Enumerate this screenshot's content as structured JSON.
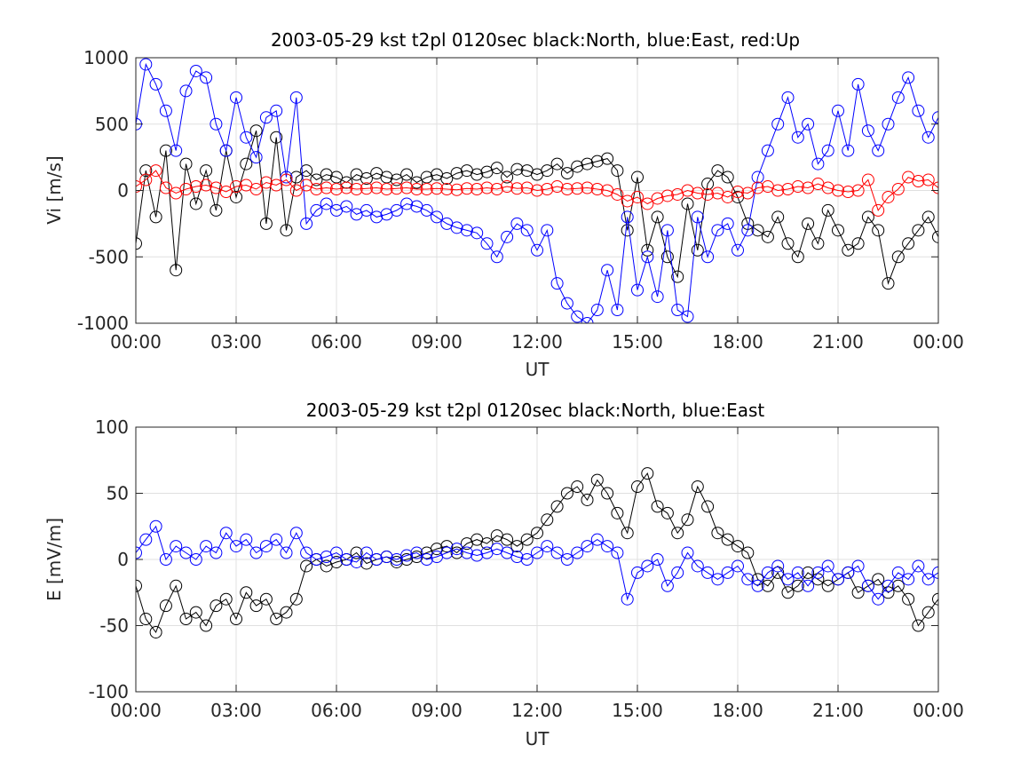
{
  "chart_data": [
    {
      "type": "line",
      "title": "2003-05-29 kst t2pl 0120sec black:North, blue:East, red:Up",
      "xlabel": "UT",
      "ylabel": "Vi [m/s]",
      "xlim": [
        0,
        24
      ],
      "ylim": [
        -1000,
        1000
      ],
      "x_tick_labels": [
        "00:00",
        "03:00",
        "06:00",
        "09:00",
        "12:00",
        "15:00",
        "18:00",
        "21:00",
        "00:00"
      ],
      "y_tick_labels": [
        "1000",
        "500",
        "0",
        "-500",
        "-1000"
      ],
      "grid": true,
      "marker": "open-circle",
      "series": [
        {
          "name": "North",
          "color": "#000000",
          "x": [
            0.0,
            0.3,
            0.6,
            0.9,
            1.2,
            1.5,
            1.8,
            2.1,
            2.4,
            2.7,
            3.0,
            3.3,
            3.6,
            3.9,
            4.2,
            4.5,
            4.8,
            5.1,
            5.4,
            5.7,
            6.0,
            6.3,
            6.6,
            6.9,
            7.2,
            7.5,
            7.8,
            8.1,
            8.4,
            8.7,
            9.0,
            9.3,
            9.6,
            9.9,
            10.2,
            10.5,
            10.8,
            11.1,
            11.4,
            11.7,
            12.0,
            12.3,
            12.6,
            12.9,
            13.2,
            13.5,
            13.8,
            14.1,
            14.4,
            14.7,
            15.0,
            15.3,
            15.6,
            15.9,
            16.2,
            16.5,
            16.8,
            17.1,
            17.4,
            17.7,
            18.0,
            18.3,
            18.6,
            18.9,
            19.2,
            19.5,
            19.8,
            20.1,
            20.4,
            20.7,
            21.0,
            21.3,
            21.6,
            21.9,
            22.2,
            22.5,
            22.8,
            23.1,
            23.4,
            23.7,
            24.0
          ],
          "y": [
            -400,
            150,
            -200,
            300,
            -600,
            200,
            -100,
            150,
            -150,
            300,
            -50,
            200,
            450,
            -250,
            400,
            -300,
            100,
            150,
            80,
            120,
            100,
            60,
            120,
            90,
            130,
            100,
            80,
            120,
            60,
            100,
            120,
            90,
            130,
            150,
            120,
            140,
            170,
            100,
            160,
            150,
            120,
            150,
            200,
            130,
            180,
            200,
            220,
            240,
            150,
            -300,
            100,
            -450,
            -200,
            -500,
            -650,
            -100,
            -450,
            50,
            150,
            100,
            -50,
            -250,
            -300,
            -350,
            -200,
            -400,
            -500,
            -250,
            -400,
            -150,
            -300,
            -450,
            -400,
            -200,
            -300,
            -700,
            -500,
            -400,
            -300,
            -200,
            -350
          ]
        },
        {
          "name": "East",
          "color": "#0000ff",
          "x": [
            0.0,
            0.3,
            0.6,
            0.9,
            1.2,
            1.5,
            1.8,
            2.1,
            2.4,
            2.7,
            3.0,
            3.3,
            3.6,
            3.9,
            4.2,
            4.5,
            4.8,
            5.1,
            5.4,
            5.7,
            6.0,
            6.3,
            6.6,
            6.9,
            7.2,
            7.5,
            7.8,
            8.1,
            8.4,
            8.7,
            9.0,
            9.3,
            9.6,
            9.9,
            10.2,
            10.5,
            10.8,
            11.1,
            11.4,
            11.7,
            12.0,
            12.3,
            12.6,
            12.9,
            13.2,
            13.5,
            13.8,
            14.1,
            14.4,
            14.7,
            15.0,
            15.3,
            15.6,
            15.9,
            16.2,
            16.5,
            16.8,
            17.1,
            17.4,
            17.7,
            18.0,
            18.3,
            18.6,
            18.9,
            19.2,
            19.5,
            19.8,
            20.1,
            20.4,
            20.7,
            21.0,
            21.3,
            21.6,
            21.9,
            22.2,
            22.5,
            22.8,
            23.1,
            23.4,
            23.7,
            24.0
          ],
          "y": [
            500,
            950,
            800,
            600,
            300,
            750,
            900,
            850,
            500,
            300,
            700,
            400,
            250,
            550,
            600,
            100,
            700,
            -250,
            -150,
            -100,
            -150,
            -120,
            -180,
            -150,
            -200,
            -180,
            -150,
            -100,
            -120,
            -150,
            -200,
            -250,
            -280,
            -300,
            -320,
            -400,
            -500,
            -350,
            -250,
            -300,
            -450,
            -300,
            -700,
            -850,
            -950,
            -1000,
            -900,
            -600,
            -900,
            -200,
            -750,
            -500,
            -800,
            -300,
            -900,
            -950,
            -200,
            -500,
            -300,
            -250,
            -450,
            -300,
            100,
            300,
            500,
            700,
            400,
            500,
            200,
            300,
            600,
            300,
            800,
            450,
            300,
            500,
            700,
            850,
            600,
            400,
            550
          ]
        },
        {
          "name": "Up",
          "color": "#ff0000",
          "x": [
            0.0,
            0.3,
            0.6,
            0.9,
            1.2,
            1.5,
            1.8,
            2.1,
            2.4,
            2.7,
            3.0,
            3.3,
            3.6,
            3.9,
            4.2,
            4.5,
            4.8,
            5.1,
            5.4,
            5.7,
            6.0,
            6.3,
            6.6,
            6.9,
            7.2,
            7.5,
            7.8,
            8.1,
            8.4,
            8.7,
            9.0,
            9.3,
            9.6,
            9.9,
            10.2,
            10.5,
            10.8,
            11.1,
            11.4,
            11.7,
            12.0,
            12.3,
            12.6,
            12.9,
            13.2,
            13.5,
            13.8,
            14.1,
            14.4,
            14.7,
            15.0,
            15.3,
            15.6,
            15.9,
            16.2,
            16.5,
            16.8,
            17.1,
            17.4,
            17.7,
            18.0,
            18.3,
            18.6,
            18.9,
            19.2,
            19.5,
            19.8,
            20.1,
            20.4,
            20.7,
            21.0,
            21.3,
            21.6,
            21.9,
            22.2,
            22.5,
            22.8,
            23.1,
            23.4,
            23.7,
            24.0
          ],
          "y": [
            30,
            80,
            150,
            20,
            -20,
            10,
            30,
            40,
            20,
            -10,
            30,
            40,
            10,
            60,
            40,
            80,
            0,
            40,
            10,
            20,
            10,
            20,
            10,
            15,
            20,
            10,
            15,
            20,
            10,
            10,
            15,
            10,
            5,
            15,
            10,
            20,
            10,
            30,
            15,
            20,
            0,
            10,
            30,
            10,
            15,
            20,
            10,
            0,
            -30,
            -80,
            -50,
            -100,
            -60,
            -40,
            -30,
            0,
            -20,
            -30,
            -20,
            -50,
            -10,
            -20,
            20,
            30,
            0,
            10,
            30,
            20,
            50,
            20,
            0,
            -10,
            0,
            80,
            -150,
            -50,
            10,
            100,
            70,
            80,
            20
          ]
        }
      ]
    },
    {
      "type": "line",
      "title": "2003-05-29 kst t2pl 0120sec black:North, blue:East",
      "xlabel": "UT",
      "ylabel": "E [mV/m]",
      "xlim": [
        0,
        24
      ],
      "ylim": [
        -100,
        100
      ],
      "x_tick_labels": [
        "00:00",
        "03:00",
        "06:00",
        "09:00",
        "12:00",
        "15:00",
        "18:00",
        "21:00",
        "00:00"
      ],
      "y_tick_labels": [
        "100",
        "50",
        "0",
        "-50",
        "-100"
      ],
      "grid": true,
      "marker": "open-circle",
      "series": [
        {
          "name": "North",
          "color": "#000000",
          "x": [
            0.0,
            0.3,
            0.6,
            0.9,
            1.2,
            1.5,
            1.8,
            2.1,
            2.4,
            2.7,
            3.0,
            3.3,
            3.6,
            3.9,
            4.2,
            4.5,
            4.8,
            5.1,
            5.4,
            5.7,
            6.0,
            6.3,
            6.6,
            6.9,
            7.2,
            7.5,
            7.8,
            8.1,
            8.4,
            8.7,
            9.0,
            9.3,
            9.6,
            9.9,
            10.2,
            10.5,
            10.8,
            11.1,
            11.4,
            11.7,
            12.0,
            12.3,
            12.6,
            12.9,
            13.2,
            13.5,
            13.8,
            14.1,
            14.4,
            14.7,
            15.0,
            15.3,
            15.6,
            15.9,
            16.2,
            16.5,
            16.8,
            17.1,
            17.4,
            17.7,
            18.0,
            18.3,
            18.6,
            18.9,
            19.2,
            19.5,
            19.8,
            20.1,
            20.4,
            20.7,
            21.0,
            21.3,
            21.6,
            21.9,
            22.2,
            22.5,
            22.8,
            23.1,
            23.4,
            23.7,
            24.0
          ],
          "y": [
            -20,
            -45,
            -55,
            -35,
            -20,
            -45,
            -40,
            -50,
            -35,
            -30,
            -45,
            -25,
            -35,
            -30,
            -45,
            -40,
            -30,
            -5,
            0,
            -5,
            -2,
            0,
            5,
            -3,
            0,
            2,
            -2,
            0,
            2,
            5,
            8,
            10,
            5,
            12,
            15,
            12,
            18,
            15,
            10,
            15,
            20,
            30,
            40,
            50,
            55,
            45,
            60,
            50,
            35,
            20,
            55,
            65,
            40,
            35,
            20,
            30,
            55,
            40,
            20,
            15,
            10,
            5,
            -15,
            -20,
            -10,
            -25,
            -20,
            -10,
            -15,
            -20,
            -15,
            -10,
            -25,
            -20,
            -15,
            -25,
            -20,
            -30,
            -50,
            -40,
            -30
          ]
        },
        {
          "name": "East",
          "color": "#0000ff",
          "x": [
            0.0,
            0.3,
            0.6,
            0.9,
            1.2,
            1.5,
            1.8,
            2.1,
            2.4,
            2.7,
            3.0,
            3.3,
            3.6,
            3.9,
            4.2,
            4.5,
            4.8,
            5.1,
            5.4,
            5.7,
            6.0,
            6.3,
            6.6,
            6.9,
            7.2,
            7.5,
            7.8,
            8.1,
            8.4,
            8.7,
            9.0,
            9.3,
            9.6,
            9.9,
            10.2,
            10.5,
            10.8,
            11.1,
            11.4,
            11.7,
            12.0,
            12.3,
            12.6,
            12.9,
            13.2,
            13.5,
            13.8,
            14.1,
            14.4,
            14.7,
            15.0,
            15.3,
            15.6,
            15.9,
            16.2,
            16.5,
            16.8,
            17.1,
            17.4,
            17.7,
            18.0,
            18.3,
            18.6,
            18.9,
            19.2,
            19.5,
            19.8,
            20.1,
            20.4,
            20.7,
            21.0,
            21.3,
            21.6,
            21.9,
            22.2,
            22.5,
            22.8,
            23.1,
            23.4,
            23.7,
            24.0
          ],
          "y": [
            5,
            15,
            25,
            0,
            10,
            5,
            0,
            10,
            5,
            20,
            10,
            15,
            5,
            10,
            15,
            5,
            20,
            5,
            0,
            2,
            5,
            0,
            -2,
            5,
            0,
            2,
            0,
            3,
            5,
            0,
            2,
            5,
            8,
            5,
            3,
            5,
            8,
            5,
            2,
            0,
            5,
            10,
            5,
            0,
            5,
            10,
            15,
            10,
            5,
            -30,
            -10,
            -5,
            0,
            -20,
            -10,
            5,
            -5,
            -10,
            -15,
            -10,
            -5,
            -15,
            -20,
            -10,
            -5,
            -15,
            -10,
            -20,
            -10,
            -5,
            -15,
            -10,
            -5,
            -20,
            -30,
            -20,
            -10,
            -15,
            -5,
            -15,
            -10
          ]
        }
      ]
    }
  ]
}
